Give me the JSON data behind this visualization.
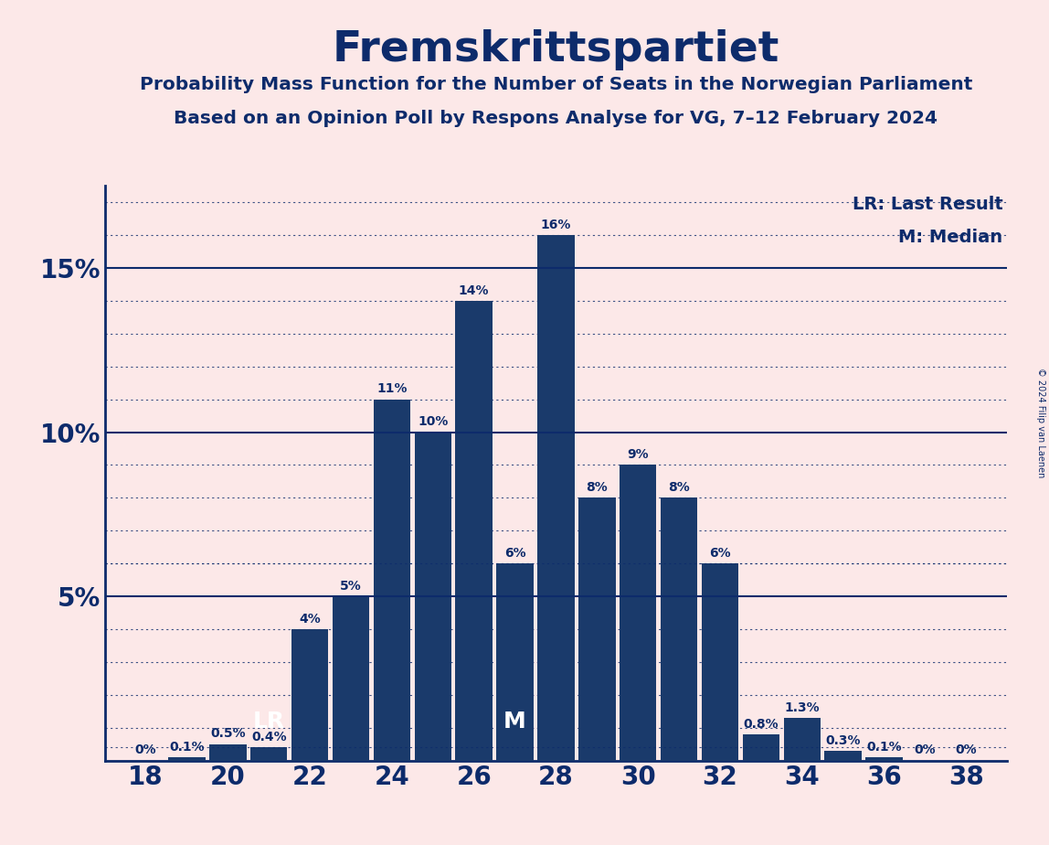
{
  "title": "Fremskrittspartiet",
  "subtitle1": "Probability Mass Function for the Number of Seats in the Norwegian Parliament",
  "subtitle2": "Based on an Opinion Poll by Respons Analyse for VG, 7–12 February 2024",
  "copyright": "© 2024 Filip van Laenen",
  "seats": [
    18,
    19,
    20,
    21,
    22,
    23,
    24,
    25,
    26,
    27,
    28,
    29,
    30,
    31,
    32,
    33,
    34,
    35,
    36,
    37,
    38
  ],
  "probabilities": [
    0.0,
    0.1,
    0.5,
    0.4,
    4.0,
    5.0,
    11.0,
    10.0,
    14.0,
    6.0,
    16.0,
    8.0,
    9.0,
    8.0,
    6.0,
    0.8,
    1.3,
    0.3,
    0.1,
    0.0,
    0.0
  ],
  "bar_color": "#1a3a6b",
  "background_color": "#fce8e8",
  "text_color": "#0d2b6b",
  "lr_seat": 21,
  "median_seat": 27,
  "lr_label": "LR",
  "median_label": "M",
  "legend_lr": "LR: Last Result",
  "legend_m": "M: Median",
  "solid_lines": [
    5,
    10,
    15
  ],
  "dotted_lines": [
    1,
    2,
    3,
    4,
    6,
    7,
    8,
    9,
    11,
    12,
    13,
    14,
    16,
    17
  ],
  "ylim": [
    0,
    17.5
  ],
  "xlim": [
    17.0,
    39.0
  ],
  "label_fontsize": 10,
  "tick_fontsize": 20
}
